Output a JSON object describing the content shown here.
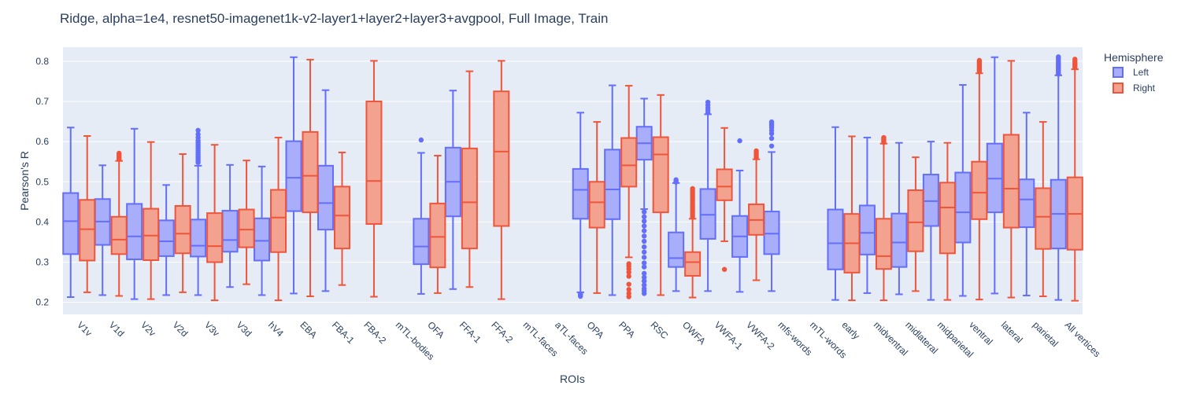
{
  "chart_data": {
    "type": "box",
    "title": "Ridge, alpha=1e4, resnet50-imagenet1k-v2-layer1+layer2+layer3+avgpool, Full Image, Train",
    "xlabel": "ROIs",
    "ylabel": "Pearson's R",
    "ylim": [
      0.17,
      0.835
    ],
    "yticks": [
      0.2,
      0.3,
      0.4,
      0.5,
      0.6,
      0.7,
      0.8
    ],
    "grid": true,
    "legend": {
      "title": "Hemisphere",
      "placement": "right-top"
    },
    "categories": [
      "V1v",
      "V1d",
      "V2v",
      "V2d",
      "V3v",
      "V3d",
      "hV4",
      "EBA",
      "FBA-1",
      "FBA-2",
      "mTL-bodies",
      "OFA",
      "FFA-1",
      "FFA-2",
      "mTL-faces",
      "aTL-faces",
      "OPA",
      "PPA",
      "RSC",
      "OWFA",
      "VWFA-1",
      "VWFA-2",
      "mfs-words",
      "mTL-words",
      "early",
      "midventral",
      "midlateral",
      "midparietal",
      "ventral",
      "lateral",
      "parietal",
      "All vertices"
    ],
    "series": [
      {
        "name": "Left",
        "line_color": "#636efa",
        "fill_color": "#a8aefa",
        "boxes": [
          {
            "category": "V1v",
            "lower": 0.213,
            "q1": 0.32,
            "median": 0.402,
            "q3": 0.472,
            "upper": 0.635,
            "outliers": []
          },
          {
            "category": "V1d",
            "lower": 0.218,
            "q1": 0.343,
            "median": 0.401,
            "q3": 0.457,
            "upper": 0.541,
            "outliers": []
          },
          {
            "category": "V2v",
            "lower": 0.208,
            "q1": 0.307,
            "median": 0.364,
            "q3": 0.445,
            "upper": 0.632,
            "outliers": []
          },
          {
            "category": "V2d",
            "lower": 0.218,
            "q1": 0.315,
            "median": 0.352,
            "q3": 0.404,
            "upper": 0.492,
            "outliers": []
          },
          {
            "category": "V3v",
            "lower": 0.218,
            "q1": 0.314,
            "median": 0.341,
            "q3": 0.406,
            "upper": 0.54,
            "outliers": [
              0.548,
              0.553,
              0.558,
              0.563,
              0.568,
              0.573,
              0.578,
              0.583,
              0.588,
              0.593,
              0.598,
              0.603,
              0.61,
              0.618,
              0.628
            ]
          },
          {
            "category": "V3d",
            "lower": 0.238,
            "q1": 0.326,
            "median": 0.355,
            "q3": 0.428,
            "upper": 0.542,
            "outliers": []
          },
          {
            "category": "hV4",
            "lower": 0.218,
            "q1": 0.304,
            "median": 0.353,
            "q3": 0.409,
            "upper": 0.538,
            "outliers": []
          },
          {
            "category": "EBA",
            "lower": 0.222,
            "q1": 0.427,
            "median": 0.51,
            "q3": 0.601,
            "upper": 0.81,
            "outliers": []
          },
          {
            "category": "FBA-1",
            "lower": 0.228,
            "q1": 0.381,
            "median": 0.447,
            "q3": 0.54,
            "upper": 0.728,
            "outliers": []
          },
          {
            "category": "OFA",
            "lower": 0.221,
            "q1": 0.295,
            "median": 0.339,
            "q3": 0.408,
            "upper": 0.572,
            "outliers": [
              0.604
            ]
          },
          {
            "category": "FFA-1",
            "lower": 0.233,
            "q1": 0.414,
            "median": 0.5,
            "q3": 0.585,
            "upper": 0.727,
            "outliers": []
          },
          {
            "category": "OPA",
            "lower": 0.225,
            "q1": 0.408,
            "median": 0.48,
            "q3": 0.532,
            "upper": 0.672,
            "outliers": [
              0.215,
              0.218,
              0.221
            ]
          },
          {
            "category": "PPA",
            "lower": 0.218,
            "q1": 0.407,
            "median": 0.481,
            "q3": 0.58,
            "upper": 0.74,
            "outliers": []
          },
          {
            "category": "RSC",
            "lower": 0.432,
            "q1": 0.555,
            "median": 0.596,
            "q3": 0.637,
            "upper": 0.707,
            "outliers": [
              0.222,
              0.228,
              0.234,
              0.243,
              0.253,
              0.262,
              0.272,
              0.288,
              0.298,
              0.312,
              0.325,
              0.338,
              0.352,
              0.365,
              0.378,
              0.39,
              0.402,
              0.413,
              0.425
            ]
          },
          {
            "category": "OWFA",
            "lower": 0.228,
            "q1": 0.288,
            "median": 0.31,
            "q3": 0.374,
            "upper": 0.497,
            "outliers": [
              0.499,
              0.502,
              0.505
            ]
          },
          {
            "category": "VWFA-1",
            "lower": 0.228,
            "q1": 0.358,
            "median": 0.418,
            "q3": 0.482,
            "upper": 0.668,
            "outliers": [
              0.672,
              0.678,
              0.684,
              0.691,
              0.698
            ]
          },
          {
            "category": "VWFA-2",
            "lower": 0.226,
            "q1": 0.313,
            "median": 0.364,
            "q3": 0.415,
            "upper": 0.528,
            "outliers": [
              0.602
            ]
          },
          {
            "category": "mfs-words",
            "lower": 0.228,
            "q1": 0.32,
            "median": 0.371,
            "q3": 0.426,
            "upper": 0.574,
            "outliers": [
              0.589,
              0.608,
              0.62,
              0.628,
              0.635,
              0.64,
              0.645,
              0.649
            ]
          },
          {
            "category": "early",
            "lower": 0.206,
            "q1": 0.282,
            "median": 0.347,
            "q3": 0.431,
            "upper": 0.636,
            "outliers": []
          },
          {
            "category": "midventral",
            "lower": 0.223,
            "q1": 0.319,
            "median": 0.373,
            "q3": 0.441,
            "upper": 0.61,
            "outliers": []
          },
          {
            "category": "midlateral",
            "lower": 0.22,
            "q1": 0.288,
            "median": 0.349,
            "q3": 0.421,
            "upper": 0.597,
            "outliers": []
          },
          {
            "category": "midparietal",
            "lower": 0.206,
            "q1": 0.39,
            "median": 0.452,
            "q3": 0.518,
            "upper": 0.6,
            "outliers": []
          },
          {
            "category": "ventral",
            "lower": 0.216,
            "q1": 0.349,
            "median": 0.424,
            "q3": 0.523,
            "upper": 0.741,
            "outliers": []
          },
          {
            "category": "lateral",
            "lower": 0.222,
            "q1": 0.424,
            "median": 0.508,
            "q3": 0.595,
            "upper": 0.81,
            "outliers": []
          },
          {
            "category": "parietal",
            "lower": 0.217,
            "q1": 0.387,
            "median": 0.456,
            "q3": 0.506,
            "upper": 0.672,
            "outliers": []
          },
          {
            "category": "All vertices",
            "lower": 0.206,
            "q1": 0.334,
            "median": 0.42,
            "q3": 0.505,
            "upper": 0.765,
            "outliers": [
              0.768,
              0.772,
              0.776,
              0.78,
              0.784,
              0.788,
              0.792,
              0.796,
              0.8,
              0.804,
              0.808,
              0.811
            ]
          }
        ]
      },
      {
        "name": "Right",
        "line_color": "#ef553b",
        "fill_color": "#f3a290",
        "boxes": [
          {
            "category": "V1v",
            "lower": 0.225,
            "q1": 0.304,
            "median": 0.382,
            "q3": 0.455,
            "upper": 0.614,
            "outliers": []
          },
          {
            "category": "V1d",
            "lower": 0.216,
            "q1": 0.32,
            "median": 0.356,
            "q3": 0.413,
            "upper": 0.552,
            "outliers": [
              0.556,
              0.559,
              0.562,
              0.565,
              0.568,
              0.571
            ]
          },
          {
            "category": "V2v",
            "lower": 0.208,
            "q1": 0.305,
            "median": 0.366,
            "q3": 0.433,
            "upper": 0.599,
            "outliers": []
          },
          {
            "category": "V2d",
            "lower": 0.225,
            "q1": 0.322,
            "median": 0.371,
            "q3": 0.44,
            "upper": 0.569,
            "outliers": []
          },
          {
            "category": "V3v",
            "lower": 0.205,
            "q1": 0.3,
            "median": 0.34,
            "q3": 0.422,
            "upper": 0.592,
            "outliers": []
          },
          {
            "category": "V3d",
            "lower": 0.245,
            "q1": 0.337,
            "median": 0.381,
            "q3": 0.431,
            "upper": 0.553,
            "outliers": []
          },
          {
            "category": "hV4",
            "lower": 0.205,
            "q1": 0.325,
            "median": 0.411,
            "q3": 0.48,
            "upper": 0.61,
            "outliers": []
          },
          {
            "category": "EBA",
            "lower": 0.215,
            "q1": 0.424,
            "median": 0.515,
            "q3": 0.624,
            "upper": 0.804,
            "outliers": []
          },
          {
            "category": "FBA-1",
            "lower": 0.243,
            "q1": 0.334,
            "median": 0.416,
            "q3": 0.488,
            "upper": 0.573,
            "outliers": []
          },
          {
            "category": "FBA-2",
            "lower": 0.214,
            "q1": 0.395,
            "median": 0.502,
            "q3": 0.7,
            "upper": 0.801,
            "outliers": []
          },
          {
            "category": "OFA",
            "lower": 0.223,
            "q1": 0.287,
            "median": 0.363,
            "q3": 0.446,
            "upper": 0.565,
            "outliers": []
          },
          {
            "category": "FFA-1",
            "lower": 0.238,
            "q1": 0.334,
            "median": 0.449,
            "q3": 0.583,
            "upper": 0.775,
            "outliers": []
          },
          {
            "category": "FFA-2",
            "lower": 0.208,
            "q1": 0.39,
            "median": 0.575,
            "q3": 0.725,
            "upper": 0.801,
            "outliers": []
          },
          {
            "category": "OPA",
            "lower": 0.223,
            "q1": 0.386,
            "median": 0.449,
            "q3": 0.5,
            "upper": 0.649,
            "outliers": []
          },
          {
            "category": "PPA",
            "lower": 0.312,
            "q1": 0.488,
            "median": 0.541,
            "q3": 0.609,
            "upper": 0.739,
            "outliers": [
              0.214,
              0.222,
              0.232,
              0.245,
              0.265,
              0.275,
              0.283,
              0.29,
              0.296
            ]
          },
          {
            "category": "RSC",
            "lower": 0.218,
            "q1": 0.424,
            "median": 0.568,
            "q3": 0.611,
            "upper": 0.716,
            "outliers": []
          },
          {
            "category": "OWFA",
            "lower": 0.212,
            "q1": 0.266,
            "median": 0.3,
            "q3": 0.325,
            "upper": 0.408,
            "outliers": [
              0.413,
              0.418,
              0.423,
              0.428,
              0.433,
              0.438,
              0.443,
              0.448,
              0.453,
              0.458,
              0.463,
              0.468,
              0.473,
              0.478,
              0.483
            ]
          },
          {
            "category": "VWFA-1",
            "lower": 0.352,
            "q1": 0.454,
            "median": 0.488,
            "q3": 0.531,
            "upper": 0.634,
            "outliers": [
              0.282
            ]
          },
          {
            "category": "VWFA-2",
            "lower": 0.255,
            "q1": 0.368,
            "median": 0.405,
            "q3": 0.444,
            "upper": 0.556,
            "outliers": [
              0.561,
              0.565,
              0.569,
              0.573,
              0.577
            ]
          },
          {
            "category": "early",
            "lower": 0.205,
            "q1": 0.274,
            "median": 0.347,
            "q3": 0.42,
            "upper": 0.613,
            "outliers": []
          },
          {
            "category": "midventral",
            "lower": 0.205,
            "q1": 0.283,
            "median": 0.315,
            "q3": 0.408,
            "upper": 0.595,
            "outliers": [
              0.598,
              0.601,
              0.604,
              0.607,
              0.61
            ]
          },
          {
            "category": "midlateral",
            "lower": 0.228,
            "q1": 0.327,
            "median": 0.399,
            "q3": 0.479,
            "upper": 0.561,
            "outliers": []
          },
          {
            "category": "midparietal",
            "lower": 0.206,
            "q1": 0.322,
            "median": 0.436,
            "q3": 0.498,
            "upper": 0.597,
            "outliers": []
          },
          {
            "category": "ventral",
            "lower": 0.207,
            "q1": 0.407,
            "median": 0.473,
            "q3": 0.55,
            "upper": 0.77,
            "outliers": [
              0.775,
              0.779,
              0.783,
              0.787,
              0.791,
              0.795,
              0.799,
              0.802
            ]
          },
          {
            "category": "lateral",
            "lower": 0.212,
            "q1": 0.386,
            "median": 0.483,
            "q3": 0.617,
            "upper": 0.801,
            "outliers": []
          },
          {
            "category": "parietal",
            "lower": 0.215,
            "q1": 0.333,
            "median": 0.413,
            "q3": 0.484,
            "upper": 0.649,
            "outliers": []
          },
          {
            "category": "All vertices",
            "lower": 0.204,
            "q1": 0.331,
            "median": 0.42,
            "q3": 0.511,
            "upper": 0.78,
            "outliers": [
              0.785,
              0.789,
              0.793,
              0.797,
              0.801,
              0.805
            ]
          }
        ]
      }
    ]
  }
}
